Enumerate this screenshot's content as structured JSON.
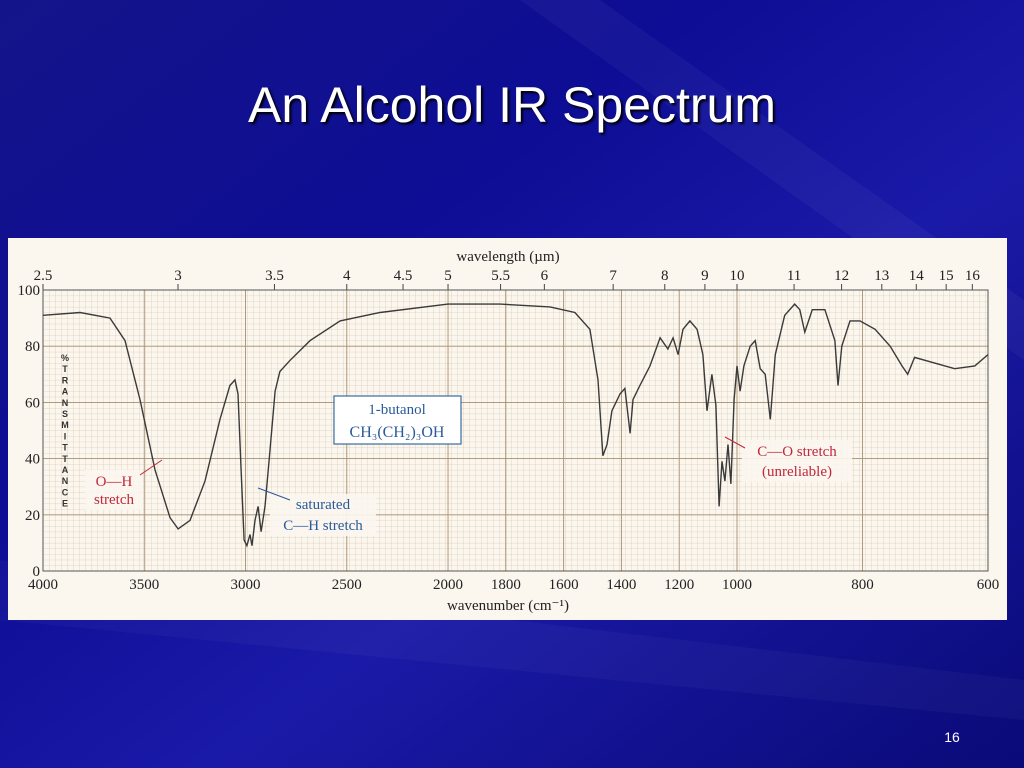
{
  "chart_data": {
    "type": "line",
    "title": "An Alcohol IR Spectrum",
    "xlabel": "wavenumber (cm⁻¹)",
    "x2label": "wavelength (µm)",
    "ylabel": "%TRANSMITTANCE",
    "xlim": [
      4000,
      600
    ],
    "x_breaks": [
      2000,
      1000
    ],
    "xticks": [
      4000,
      3500,
      3000,
      2500,
      2000,
      1800,
      1600,
      1400,
      1200,
      1000,
      800,
      600
    ],
    "x2ticks": [
      2.5,
      3,
      3.5,
      4,
      4.5,
      5,
      5.5,
      6,
      7,
      8,
      9,
      10,
      11,
      12,
      13,
      14,
      15,
      16
    ],
    "ylim": [
      0,
      100
    ],
    "yticks": [
      0,
      20,
      40,
      60,
      80,
      100
    ],
    "grid": true,
    "color": "#3a3a3a",
    "x": [
      4000,
      3817,
      3669,
      3595,
      3521,
      3447,
      3373,
      3333,
      3274,
      3200,
      3126,
      3077,
      3052,
      3037,
      3022,
      3007,
      2993,
      2978,
      2968,
      2953,
      2938,
      2923,
      2904,
      2879,
      2854,
      2830,
      2780,
      2681,
      2533,
      2336,
      2000,
      1820,
      1647,
      1561,
      1509,
      1481,
      1464,
      1450,
      1433,
      1405,
      1388,
      1370,
      1360,
      1336,
      1301,
      1266,
      1239,
      1221,
      1204,
      1187,
      1163,
      1138,
      1118,
      1104,
      1087,
      1073,
      1062,
      1052,
      1042,
      1031,
      1021,
      1010,
      1000,
      995,
      989,
      979,
      971,
      963,
      955,
      947,
      939,
      924,
      908,
      900,
      892,
      880,
      860,
      844,
      839,
      833,
      820,
      804,
      780,
      756,
      737,
      728,
      717,
      685,
      653,
      621,
      600
    ],
    "values": [
      91,
      92,
      90,
      82,
      61,
      36,
      19,
      15,
      18,
      32,
      54,
      66,
      68,
      63,
      36,
      11,
      9,
      13,
      9,
      18,
      23,
      14,
      23,
      43,
      64,
      71,
      75,
      82,
      89,
      92,
      95,
      95,
      94,
      92,
      86,
      68,
      41,
      45,
      57,
      63,
      65,
      49,
      61,
      66,
      73,
      83,
      79,
      83,
      77,
      86,
      89,
      86,
      77,
      57,
      70,
      59,
      23,
      39,
      32,
      45,
      31,
      61,
      73,
      64,
      73,
      80,
      82,
      72,
      70,
      54,
      77,
      91,
      95,
      93,
      85,
      93,
      93,
      82,
      66,
      80,
      89,
      89,
      86,
      80,
      73,
      70,
      76,
      74,
      72,
      73,
      77
    ],
    "compound": [
      "1-butanol",
      "CH₃(CH₂)₃OH"
    ],
    "annotations": [
      {
        "lines": [
          "O—H",
          "stretch"
        ],
        "color": "#c0283c"
      },
      {
        "lines": [
          "saturated",
          "C—H stretch"
        ],
        "color": "#2a5a9a"
      },
      {
        "lines": [
          "C—O stretch",
          "(unreliable)"
        ],
        "color": "#c0283c"
      }
    ]
  },
  "slide": {
    "number": 16
  }
}
